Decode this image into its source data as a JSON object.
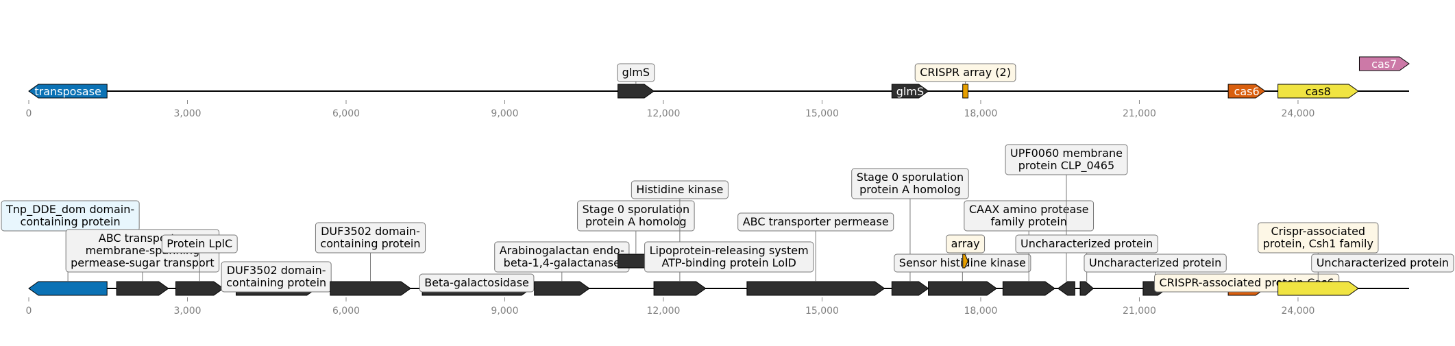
{
  "colors": {
    "dark": "#2e2e2e",
    "blue": "#0b72b5",
    "orange": "#d95f0e",
    "yellow": "#f0e442",
    "pink": "#cc79a7",
    "array": "#e69f00",
    "label_box_default": "#f2f2f2",
    "label_box_blue": "#e8f6fd",
    "label_box_cream": "#fdf7e6"
  },
  "axis_max": 26100,
  "tracks": [
    {
      "id": "top",
      "ticks": [
        {
          "value": 0,
          "label": "0"
        },
        {
          "value": 3000,
          "label": "3,000"
        },
        {
          "value": 6000,
          "label": "6,000"
        },
        {
          "value": 9000,
          "label": "9,000"
        },
        {
          "value": 12000,
          "label": "12,000"
        },
        {
          "value": 15000,
          "label": "15,000"
        },
        {
          "value": 18000,
          "label": "18,000"
        },
        {
          "value": 21000,
          "label": "21,000"
        },
        {
          "value": 24000,
          "label": "24,000"
        }
      ],
      "features": [
        {
          "name": "transposase",
          "start": 0,
          "end": 1480,
          "strand": -1,
          "color": "blue",
          "inside_label": "transposase"
        },
        {
          "name": "glmS-1",
          "start": 11140,
          "end": 11820,
          "strand": 1,
          "color": "dark",
          "label": [
            "glmS"
          ],
          "label_bg": "label_box_default"
        },
        {
          "name": "glmS-2",
          "start": 16320,
          "end": 17010,
          "strand": 1,
          "color": "dark",
          "inside_label": "glmS"
        },
        {
          "name": "crispr-array",
          "start": 17660,
          "end": 17760,
          "strand": 0,
          "color": "array",
          "label": [
            "CRISPR array (2)"
          ],
          "label_bg": "label_box_cream"
        },
        {
          "name": "cas6",
          "start": 22680,
          "end": 23380,
          "strand": 1,
          "color": "orange",
          "inside_label": "cas6"
        },
        {
          "name": "cas8",
          "start": 23620,
          "end": 25140,
          "strand": 1,
          "color": "yellow",
          "inside_label": "cas8"
        },
        {
          "name": "cas7",
          "start": 25160,
          "end": 26100,
          "strand": 1,
          "color": "pink",
          "inside_label": "cas7",
          "raised": true
        }
      ]
    },
    {
      "id": "bottom",
      "ticks": [
        {
          "value": 0,
          "label": "0"
        },
        {
          "value": 3000,
          "label": "3,000"
        },
        {
          "value": 6000,
          "label": "6,000"
        },
        {
          "value": 9000,
          "label": "9,000"
        },
        {
          "value": 12000,
          "label": "12,000"
        },
        {
          "value": 15000,
          "label": "15,000"
        },
        {
          "value": 18000,
          "label": "18,000"
        },
        {
          "value": 21000,
          "label": "21,000"
        },
        {
          "value": 24000,
          "label": "24,000"
        }
      ],
      "features": [
        {
          "name": "tnp-dde",
          "start": 0,
          "end": 1480,
          "strand": -1,
          "color": "blue",
          "label": [
            "Tnp_DDE_dom domain-",
            "containing protein"
          ],
          "label_bg": "label_box_blue",
          "level": 3
        },
        {
          "name": "abc-transporter-sugar",
          "start": 1660,
          "end": 2640,
          "strand": 1,
          "color": "dark",
          "label": [
            "ABC transporter",
            "membrane-spanning",
            "permease-sugar transport"
          ],
          "label_bg": "label_box_default",
          "level": 1
        },
        {
          "name": "protein-lplc",
          "start": 2780,
          "end": 3680,
          "strand": 1,
          "color": "dark",
          "label": [
            "Protein LplC"
          ],
          "label_bg": "label_box_default",
          "level": 2
        },
        {
          "name": "duf3502-a",
          "start": 3920,
          "end": 5440,
          "strand": 1,
          "color": "dark",
          "label": [
            "DUF3502 domain-",
            "containing protein"
          ],
          "label_bg": "label_box_default",
          "level": 0
        },
        {
          "name": "duf3502-b",
          "start": 5700,
          "end": 7220,
          "strand": 1,
          "color": "dark",
          "label": [
            "DUF3502 domain-",
            "containing protein"
          ],
          "label_bg": "label_box_default",
          "level": 2
        },
        {
          "name": "beta-galactosidase",
          "start": 7440,
          "end": 9500,
          "strand": 1,
          "color": "dark",
          "label": [
            "Beta-galactosidase"
          ],
          "label_bg": "label_box_default",
          "level": 0
        },
        {
          "name": "arabinogalactan",
          "start": 9560,
          "end": 10600,
          "strand": 1,
          "color": "dark",
          "label": [
            "Arabinogalactan endo-",
            "beta-1,4-galactanase"
          ],
          "label_bg": "label_box_default",
          "level": 1
        },
        {
          "name": "stage0-a",
          "start": 11140,
          "end": 11820,
          "strand": 1,
          "color": "dark",
          "label": [
            "Stage 0 sporulation",
            "protein A homolog"
          ],
          "label_bg": "label_box_default",
          "level": 3,
          "raised": true
        },
        {
          "name": "histidine-kinase",
          "start": 11820,
          "end": 12800,
          "strand": 1,
          "color": "dark",
          "label": [
            "Histidine kinase"
          ],
          "label_bg": "label_box_default",
          "level": 4
        },
        {
          "name": "lipoprotein-lold",
          "start": 12900,
          "end": 13580,
          "strand": 1,
          "color": "dark",
          "label": [
            "Lipoprotein-releasing system",
            "ATP-binding protein LolD"
          ],
          "label_bg": "label_box_default",
          "level": 1,
          "raised": true
        },
        {
          "name": "abc-transporter-permease",
          "start": 13580,
          "end": 16180,
          "strand": 1,
          "color": "dark",
          "label": [
            "ABC transporter permease"
          ],
          "label_bg": "label_box_default",
          "level": 3
        },
        {
          "name": "stage0-b",
          "start": 16320,
          "end": 17010,
          "strand": 1,
          "color": "dark",
          "label": [
            "Stage 0 sporulation",
            "protein A homolog"
          ],
          "label_bg": "label_box_default",
          "level": 4
        },
        {
          "name": "sensor-histidine-kinase",
          "start": 17010,
          "end": 18300,
          "strand": 1,
          "color": "dark",
          "label": [
            "Sensor histidine kinase"
          ],
          "label_bg": "label_box_default",
          "level": 1
        },
        {
          "name": "array",
          "start": 17660,
          "end": 17760,
          "strand": 1,
          "color": "array",
          "label": [
            "array"
          ],
          "label_bg": "label_box_cream",
          "level": 2,
          "raised": true
        },
        {
          "name": "caax-protease",
          "start": 18420,
          "end": 19400,
          "strand": 1,
          "color": "dark",
          "label": [
            "CAAX amino protease",
            "family protein"
          ],
          "label_bg": "label_box_default",
          "level": 3
        },
        {
          "name": "upf0060",
          "start": 19460,
          "end": 19780,
          "strand": -1,
          "color": "dark",
          "label": [
            "UPF0060 membrane",
            "protein CLP_0465"
          ],
          "label_bg": "label_box_default",
          "level": 5
        },
        {
          "name": "uncharacterized-a",
          "start": 19880,
          "end": 20130,
          "strand": 1,
          "color": "dark",
          "label": [
            "Uncharacterized protein"
          ],
          "label_bg": "label_box_default",
          "level": 2
        },
        {
          "name": "uncharacterized-b",
          "start": 21070,
          "end": 21530,
          "strand": 1,
          "color": "dark",
          "label": [
            "Uncharacterized protein"
          ],
          "label_bg": "label_box_default",
          "level": 1
        },
        {
          "name": "crispr-cas6",
          "start": 22680,
          "end": 23380,
          "strand": 1,
          "color": "orange",
          "label": [
            "CRISPR-associated protein Cas6"
          ],
          "label_bg": "label_box_cream",
          "level": 0
        },
        {
          "name": "csh1",
          "start": 23620,
          "end": 25140,
          "strand": 1,
          "color": "yellow",
          "label": [
            "Crispr-associated",
            "protein, Csh1 family"
          ],
          "label_bg": "label_box_cream",
          "level": 2
        },
        {
          "name": "uncharacterized-c",
          "start": 25160,
          "end": 26100,
          "strand": 1,
          "color": "dark",
          "label": [
            "Uncharacterized protein"
          ],
          "label_bg": "label_box_default",
          "level": 1,
          "raised": true
        }
      ]
    }
  ]
}
